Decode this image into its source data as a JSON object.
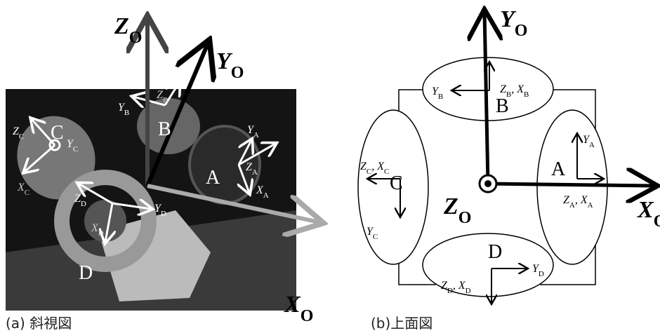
{
  "photo": {
    "labels": [
      {
        "parts": [
          {
            "t": "Z",
            "sub": "O"
          }
        ]
      },
      {
        "parts": [
          {
            "t": "Y",
            "sub": "O"
          }
        ]
      },
      {
        "parts": [
          {
            "t": "X",
            "sub": "O"
          }
        ]
      },
      {
        "parts": [
          {
            "t": "Z",
            "sub": "B"
          }
        ]
      },
      {
        "parts": [
          {
            "t": "Y",
            "sub": "B"
          }
        ]
      },
      {
        "parts": [
          {
            "t": "B"
          }
        ]
      },
      {
        "parts": [
          {
            "t": "C"
          }
        ]
      },
      {
        "parts": [
          {
            "t": "Z",
            "sub": "C"
          }
        ]
      },
      {
        "parts": [
          {
            "t": "Y",
            "sub": "C"
          }
        ]
      },
      {
        "parts": [
          {
            "t": "X",
            "sub": "C"
          }
        ]
      },
      {
        "parts": [
          {
            "t": "Y",
            "sub": "A"
          }
        ]
      },
      {
        "parts": [
          {
            "t": "Z",
            "sub": "A"
          }
        ]
      },
      {
        "parts": [
          {
            "t": "A"
          }
        ]
      },
      {
        "parts": [
          {
            "t": "X",
            "sub": "A"
          }
        ]
      },
      {
        "parts": [
          {
            "t": "Z",
            "sub": "D"
          }
        ]
      },
      {
        "parts": [
          {
            "t": "Y",
            "sub": "D"
          }
        ]
      },
      {
        "parts": [
          {
            "t": "X",
            "sub": "D"
          }
        ]
      },
      {
        "parts": [
          {
            "t": "D"
          }
        ]
      }
    ]
  },
  "diagram": {
    "labels": [
      {
        "parts": [
          {
            "t": "Y",
            "sub": "O"
          }
        ]
      },
      {
        "parts": [
          {
            "t": "Z",
            "sub": "B"
          },
          {
            "t": ", X",
            "sub": "B"
          }
        ]
      },
      {
        "parts": [
          {
            "t": "Y",
            "sub": "B"
          }
        ]
      },
      {
        "parts": [
          {
            "t": "B"
          }
        ]
      },
      {
        "parts": [
          {
            "t": "Y",
            "sub": "A"
          }
        ]
      },
      {
        "parts": [
          {
            "t": "A"
          }
        ]
      },
      {
        "parts": [
          {
            "t": "Z",
            "sub": "A"
          },
          {
            "t": ", X",
            "sub": "A"
          }
        ]
      },
      {
        "parts": [
          {
            "t": "X",
            "sub": "O"
          }
        ]
      },
      {
        "parts": [
          {
            "t": "Z",
            "sub": "C"
          },
          {
            "t": ", X",
            "sub": "C"
          }
        ]
      },
      {
        "parts": [
          {
            "t": "C"
          }
        ]
      },
      {
        "parts": [
          {
            "t": "Y",
            "sub": "C"
          }
        ]
      },
      {
        "parts": [
          {
            "t": "Z",
            "sub": "O"
          }
        ]
      },
      {
        "parts": [
          {
            "t": "D"
          }
        ]
      },
      {
        "parts": [
          {
            "t": "Y",
            "sub": "D"
          }
        ]
      },
      {
        "parts": [
          {
            "t": "Z",
            "sub": "D"
          },
          {
            "t": ", X",
            "sub": "D"
          }
        ]
      }
    ]
  },
  "captions": {
    "a": "(a) 斜視図",
    "b": "(b)上面図"
  }
}
